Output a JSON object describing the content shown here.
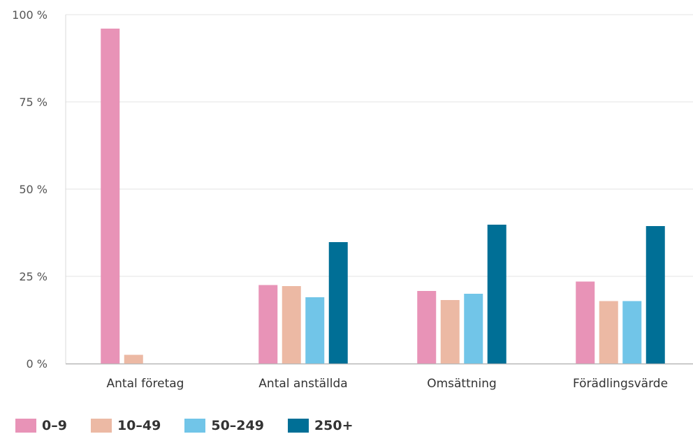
{
  "chart_data": {
    "type": "bar",
    "categories": [
      "Antal företag",
      "Antal anställda",
      "Omsättning",
      "Förädlingsvärde"
    ],
    "series": [
      {
        "name": "0–9",
        "color": "#e893b7",
        "values": [
          96,
          22.5,
          20.8,
          23.5
        ]
      },
      {
        "name": "10–49",
        "color": "#ecb9a4",
        "values": [
          2.5,
          22.2,
          18.2,
          17.9
        ]
      },
      {
        "name": "50–249",
        "color": "#71c5e8",
        "values": [
          0,
          19,
          20,
          17.9
        ]
      },
      {
        "name": "250+",
        "color": "#006f96",
        "values": [
          0,
          34.8,
          39.8,
          39.4
        ]
      }
    ],
    "y_ticks": [
      {
        "value": 0,
        "label": "0 %"
      },
      {
        "value": 25,
        "label": "25 %"
      },
      {
        "value": 50,
        "label": "50 %"
      },
      {
        "value": 75,
        "label": "75 %"
      },
      {
        "value": 100,
        "label": "100 %"
      }
    ],
    "ylim": [
      0,
      100
    ],
    "grid": true,
    "legend_position": "bottom-left",
    "title": "",
    "xlabel": "",
    "ylabel": ""
  }
}
